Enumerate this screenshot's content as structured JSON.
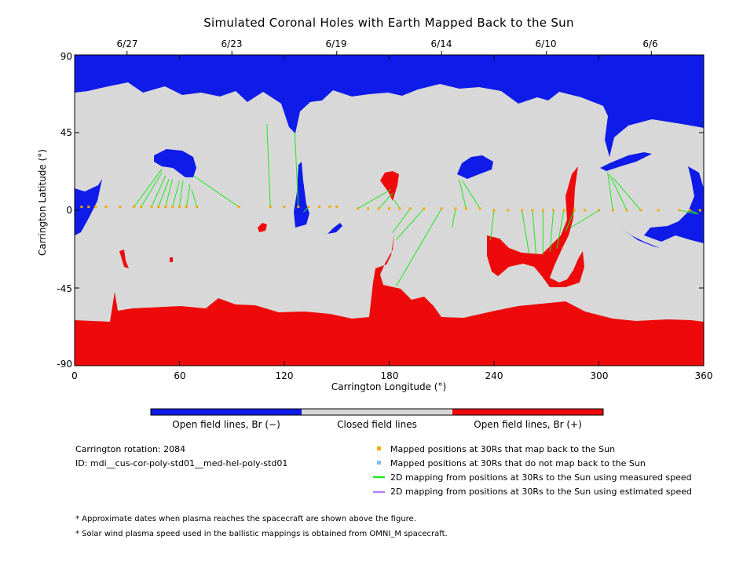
{
  "title": "Simulated Coronal Holes with Earth Mapped Back to the Sun",
  "top_dates": [
    "6/27",
    "6/23",
    "6/19",
    "6/14",
    "6/10",
    "6/6"
  ],
  "colors": {
    "open_negative": "#0f1be8",
    "closed": "#d8d8d8",
    "open_positive": "#ee0a0a",
    "mapped_back": "#f5a800",
    "not_mapped_back": "#7fbfff",
    "measured_speed": "#1ee81e",
    "estimated_speed": "#b084f0"
  },
  "colorbar": {
    "labels": [
      "Open field lines, Br (−)",
      "Closed field lines",
      "Open field lines, Br (+)"
    ]
  },
  "info": {
    "rotation": "Carrington rotation: 2084",
    "id": "ID: mdi__cus-cor-poly-std01__med-hel-poly-std01"
  },
  "legend": [
    {
      "label": "Mapped positions at 30Rs that map back to the Sun",
      "kind": "square",
      "color_key": "mapped_back"
    },
    {
      "label": "Mapped positions at 30Rs that do not map back to the Sun",
      "kind": "square",
      "color_key": "not_mapped_back"
    },
    {
      "label": "2D mapping from positions at 30Rs to the Sun using measured speed",
      "kind": "line",
      "color_key": "measured_speed"
    },
    {
      "label": "2D mapping from positions at 30Rs to the Sun using estimated speed",
      "kind": "line",
      "color_key": "estimated_speed"
    }
  ],
  "notes": [
    "* Approximate dates when plasma reaches the spacecraft are shown above the figure.",
    "* Solar wind plasma speed used in the ballistic mappings is obtained from OMNI_M spacecraft."
  ],
  "chart_data": {
    "type": "scatter",
    "title": "Simulated Coronal Holes with Earth Mapped Back to the Sun",
    "xlabel": "Carrington Longitude (°)",
    "ylabel": "Carrington Latitude (°)",
    "xlim": [
      0,
      360
    ],
    "ylim": [
      -90,
      90
    ],
    "x_ticks": [
      0,
      60,
      120,
      180,
      240,
      300,
      360
    ],
    "y_ticks": [
      -90,
      -45,
      0,
      45,
      90
    ],
    "top_axis": {
      "labels": [
        "6/27",
        "6/23",
        "6/19",
        "6/14",
        "6/10",
        "6/6"
      ],
      "positions": [
        30,
        90,
        150,
        210,
        270,
        330
      ]
    },
    "background_map": "coronal hole polarity map",
    "mapped_points": {
      "lon": [
        4,
        8,
        12,
        18,
        26,
        34,
        38,
        44,
        48,
        52,
        56,
        60,
        64,
        70,
        94,
        112,
        120,
        128,
        134,
        140,
        146,
        150,
        162,
        168,
        174,
        180,
        186,
        192,
        200,
        210,
        218,
        224,
        232,
        240,
        248,
        256,
        262,
        268,
        274,
        280,
        286,
        292,
        300,
        308,
        316,
        324,
        334,
        346,
        352,
        358
      ],
      "lat": [
        2,
        2,
        2,
        2,
        2,
        2,
        2,
        2,
        2,
        2,
        2,
        2,
        2,
        2,
        2,
        2,
        2,
        2,
        2,
        2,
        2,
        2,
        1,
        1,
        1,
        1,
        1,
        1,
        1,
        1,
        1,
        1,
        1,
        0,
        0,
        0,
        0,
        0,
        0,
        0,
        0,
        0,
        0,
        0,
        0,
        0,
        0,
        0,
        0,
        0
      ]
    },
    "field_line_mappings": [
      {
        "from": [
          34,
          2
        ],
        "to": [
          50,
          24
        ]
      },
      {
        "from": [
          38,
          2
        ],
        "to": [
          50,
          22
        ]
      },
      {
        "from": [
          44,
          2
        ],
        "to": [
          52,
          20
        ]
      },
      {
        "from": [
          48,
          2
        ],
        "to": [
          54,
          18
        ]
      },
      {
        "from": [
          52,
          2
        ],
        "to": [
          56,
          18
        ]
      },
      {
        "from": [
          56,
          2
        ],
        "to": [
          60,
          17
        ]
      },
      {
        "from": [
          60,
          2
        ],
        "to": [
          62,
          17
        ]
      },
      {
        "from": [
          64,
          2
        ],
        "to": [
          66,
          15
        ]
      },
      {
        "from": [
          70,
          2
        ],
        "to": [
          67,
          12
        ]
      },
      {
        "from": [
          94,
          2
        ],
        "to": [
          68,
          20
        ]
      },
      {
        "from": [
          112,
          2
        ],
        "to": [
          110,
          50
        ]
      },
      {
        "from": [
          128,
          2
        ],
        "to": [
          126,
          45
        ]
      },
      {
        "from": [
          134,
          2
        ],
        "to": [
          131,
          -1
        ]
      },
      {
        "from": [
          162,
          1
        ],
        "to": [
          181,
          12
        ]
      },
      {
        "from": [
          174,
          1
        ],
        "to": [
          182,
          10
        ]
      },
      {
        "from": [
          186,
          1
        ],
        "to": [
          183,
          6
        ]
      },
      {
        "from": [
          192,
          1
        ],
        "to": [
          182,
          -13
        ]
      },
      {
        "from": [
          200,
          1
        ],
        "to": [
          184,
          -17
        ]
      },
      {
        "from": [
          210,
          1
        ],
        "to": [
          184,
          -44
        ]
      },
      {
        "from": [
          218,
          1
        ],
        "to": [
          216,
          -10
        ]
      },
      {
        "from": [
          224,
          1
        ],
        "to": [
          220,
          18
        ]
      },
      {
        "from": [
          232,
          1
        ],
        "to": [
          222,
          17
        ]
      },
      {
        "from": [
          240,
          0
        ],
        "to": [
          238,
          -17
        ]
      },
      {
        "from": [
          256,
          0
        ],
        "to": [
          260,
          -25
        ]
      },
      {
        "from": [
          262,
          0
        ],
        "to": [
          264,
          -25
        ]
      },
      {
        "from": [
          268,
          0
        ],
        "to": [
          268,
          -25
        ]
      },
      {
        "from": [
          274,
          0
        ],
        "to": [
          272,
          -24
        ]
      },
      {
        "from": [
          280,
          0
        ],
        "to": [
          276,
          -22
        ]
      },
      {
        "from": [
          286,
          0
        ],
        "to": [
          281,
          -12
        ]
      },
      {
        "from": [
          300,
          0
        ],
        "to": [
          284,
          -10
        ]
      },
      {
        "from": [
          308,
          0
        ],
        "to": [
          305,
          22
        ]
      },
      {
        "from": [
          316,
          0
        ],
        "to": [
          306,
          21
        ]
      },
      {
        "from": [
          324,
          0
        ],
        "to": [
          308,
          19
        ]
      },
      {
        "from": [
          346,
          0
        ],
        "to": [
          356,
          -2
        ]
      },
      {
        "from": [
          352,
          0
        ],
        "to": [
          357,
          -2
        ]
      },
      {
        "from": [
          358,
          0
        ],
        "to": [
          357,
          0
        ]
      }
    ],
    "grid": false,
    "legend_placement": "below"
  }
}
